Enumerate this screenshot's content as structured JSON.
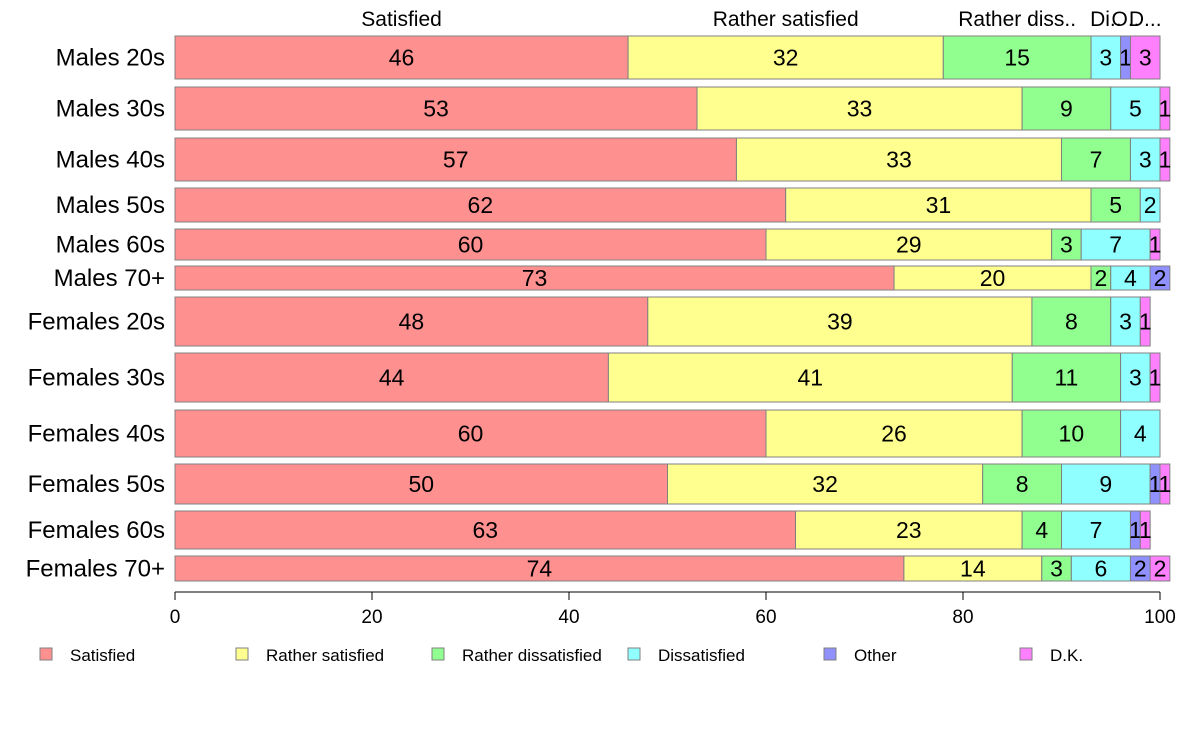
{
  "chart_data": {
    "type": "bar",
    "orientation": "horizontal",
    "stacked": true,
    "categories": [
      "Males 20s",
      "Males 30s",
      "Males 40s",
      "Males 50s",
      "Males 60s",
      "Males 70+",
      "Females 20s",
      "Females 30s",
      "Females 40s",
      "Females 50s",
      "Females 60s",
      "Females 70+"
    ],
    "series": [
      {
        "name": "Satisfied",
        "color": "#ff9090",
        "values": [
          46,
          53,
          57,
          62,
          60,
          73,
          48,
          44,
          60,
          50,
          63,
          74
        ]
      },
      {
        "name": "Rather satisfied",
        "color": "#ffff90",
        "values": [
          32,
          33,
          33,
          31,
          29,
          20,
          39,
          41,
          26,
          32,
          23,
          14
        ]
      },
      {
        "name": "Rather dissatisfied",
        "color": "#90ff90",
        "values": [
          15,
          9,
          7,
          5,
          3,
          2,
          8,
          11,
          10,
          8,
          4,
          3
        ]
      },
      {
        "name": "Dissatisfied",
        "color": "#90ffff",
        "values": [
          3,
          5,
          3,
          2,
          7,
          4,
          3,
          3,
          4,
          9,
          7,
          6
        ]
      },
      {
        "name": "Other",
        "color": "#9090ff",
        "values": [
          1,
          0,
          0,
          0,
          0,
          2,
          0,
          0,
          0,
          1,
          1,
          2
        ]
      },
      {
        "name": "D.K.",
        "color": "#ff80ff",
        "values": [
          3,
          1,
          1,
          0,
          1,
          0,
          1,
          1,
          0,
          1,
          1,
          2
        ]
      }
    ],
    "top_labels": [
      "Satisfied",
      "Rather satisfied",
      "Rather diss..",
      "Di..",
      "O..",
      "D..."
    ],
    "xlim": [
      0,
      100
    ],
    "xticks": [
      0,
      20,
      40,
      60,
      80,
      100
    ],
    "legend_position": "bottom",
    "grid": false
  }
}
